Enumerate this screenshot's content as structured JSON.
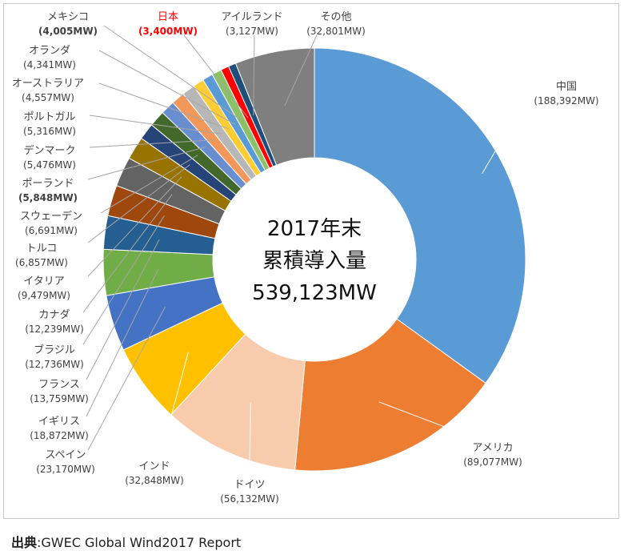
{
  "chart_data": {
    "type": "pie",
    "center_text": [
      "2017年末",
      "累積導入量",
      "539,123MW"
    ],
    "slices": [
      {
        "label": "中国",
        "value_text": "(188,392MW)",
        "value": 188392,
        "color": "#5b9bd5"
      },
      {
        "label": "アメリカ",
        "value_text": "(89,077MW)",
        "value": 89077,
        "color": "#ed7d31"
      },
      {
        "label": "ドイツ",
        "value_text": "(56,132MW)",
        "value": 56132,
        "color": "#f8cbad"
      },
      {
        "label": "インド",
        "value_text": "(32,848MW)",
        "value": 32848,
        "color": "#ffc000"
      },
      {
        "label": "スペイン",
        "value_text": "(23,170MW)",
        "value": 23170,
        "color": "#4472c4"
      },
      {
        "label": "イギリス",
        "value_text": "(18,872MW)",
        "value": 18872,
        "color": "#70ad47"
      },
      {
        "label": "フランス",
        "value_text": "(13,759MW)",
        "value": 13759,
        "color": "#255e91"
      },
      {
        "label": "ブラジル",
        "value_text": "(12,736MW)",
        "value": 12736,
        "color": "#9e480e"
      },
      {
        "label": "カナダ",
        "value_text": "(12,239MW)",
        "value": 12239,
        "color": "#636363"
      },
      {
        "label": "イタリア",
        "value_text": "(9,479MW)",
        "value": 9479,
        "color": "#997300"
      },
      {
        "label": "トルコ",
        "value_text": "(6,857MW)",
        "value": 6857,
        "color": "#264478"
      },
      {
        "label": "スウェーデン",
        "value_text": "(6,691MW)",
        "value": 6691,
        "color": "#43682b"
      },
      {
        "label": "ポーランド",
        "value_text": "(5,848MW)",
        "value": 5848,
        "color": "#698ed0"
      },
      {
        "label": "デンマーク",
        "value_text": "(5,476MW)",
        "value": 5476,
        "color": "#f1975a"
      },
      {
        "label": "ポルトガル",
        "value_text": "(5,316MW)",
        "value": 5316,
        "color": "#b7b7b7"
      },
      {
        "label": "オーストラリア",
        "value_text": "(4,557MW)",
        "value": 4557,
        "color": "#ffcd33"
      },
      {
        "label": "オランダ",
        "value_text": "(4,341MW)",
        "value": 4341,
        "color": "#5b9bd5"
      },
      {
        "label": "メキシコ",
        "value_text": "(4,005MW)",
        "value": 4005,
        "color": "#8cc168"
      },
      {
        "label": "日本",
        "value_text": "(3,400MW)",
        "value": 3400,
        "color": "#ff0000"
      },
      {
        "label": "アイルランド",
        "value_text": "(3,127MW)",
        "value": 3127,
        "color": "#1f4e79"
      },
      {
        "label": "その他",
        "value_text": "(32,801MW)",
        "value": 32801,
        "color": "#7f7f7f"
      }
    ]
  },
  "source": {
    "label": "出典",
    "text": ":GWEC Global Wind2017 Report"
  }
}
